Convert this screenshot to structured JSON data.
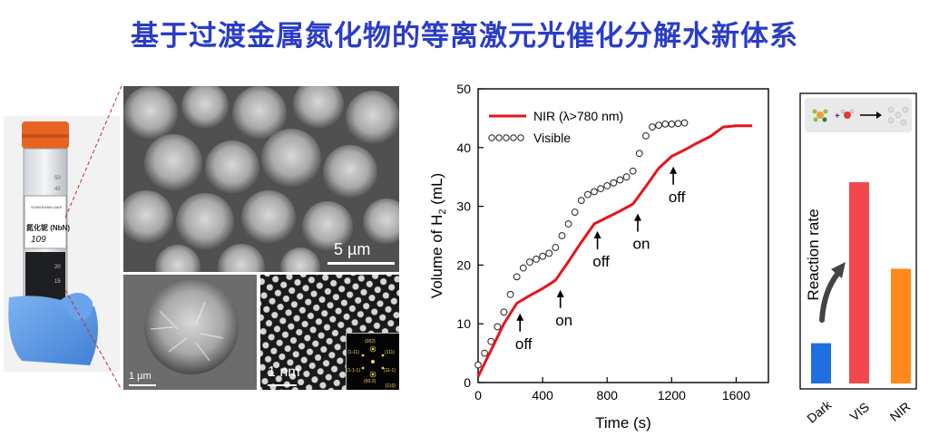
{
  "title": "基于过渡金属氮化物的等离激元光催化分解水新体系",
  "vial": {
    "label_line1": "SONGSHAN LAKE",
    "label_sample": "氮化铌 (NbN)",
    "handwritten": "109",
    "scale_marks": [
      "50",
      "45",
      "20",
      "15"
    ]
  },
  "micrographs": {
    "sem_large_scale": "5 µm",
    "sem_small_scale": "1 µm",
    "tem_scale": "1 nm",
    "fft_labels": [
      "(002)",
      "(1-11)",
      "(111)",
      "(1-1-1)",
      "(11-1)",
      "(00-2)",
      "[110]"
    ]
  },
  "chart_data": [
    {
      "type": "scatter",
      "xlabel": "Time (s)",
      "ylabel": "Volume of H2 (mL)",
      "xlim": [
        0,
        1800
      ],
      "ylim": [
        0,
        50
      ],
      "xticks": [
        "0",
        "400",
        "800",
        "1200",
        "1600"
      ],
      "yticks": [
        "0",
        "10",
        "20",
        "30",
        "40",
        "50"
      ],
      "legend_position": "top-left",
      "series": [
        {
          "name": "NIR (λ>780 nm)",
          "style": "line",
          "color": "#e8141b",
          "x": [
            0,
            80,
            160,
            240,
            320,
            400,
            480,
            560,
            640,
            720,
            800,
            880,
            960,
            1040,
            1120,
            1200,
            1280,
            1360,
            1440,
            1520,
            1600,
            1700
          ],
          "y": [
            1,
            5.5,
            10,
            13.5,
            14.8,
            16,
            17.4,
            20.6,
            23.9,
            27,
            28.1,
            29.2,
            30.4,
            33.4,
            36.5,
            38.5,
            39.6,
            40.8,
            41.9,
            43.5,
            43.7,
            43.7
          ]
        },
        {
          "name": "Visible",
          "style": "open-circle",
          "color": "#222222",
          "x": [
            0,
            40,
            80,
            120,
            160,
            200,
            240,
            280,
            320,
            360,
            400,
            440,
            480,
            520,
            560,
            600,
            640,
            680,
            720,
            760,
            800,
            840,
            880,
            920,
            960,
            1000,
            1040,
            1080,
            1120,
            1160,
            1200,
            1240,
            1280
          ],
          "y": [
            3,
            5,
            7,
            9.5,
            12,
            15,
            18,
            19.5,
            20.5,
            21,
            21.5,
            22,
            23,
            25,
            27,
            29,
            31,
            32,
            32.5,
            33,
            33.5,
            34,
            34.5,
            35,
            36,
            39,
            42,
            43.5,
            43.8,
            44,
            44,
            44.1,
            44.2
          ]
        }
      ],
      "annotations": [
        {
          "text": "off",
          "x": 260,
          "y": 13
        },
        {
          "text": "on",
          "x": 510,
          "y": 17
        },
        {
          "text": "off",
          "x": 740,
          "y": 27
        },
        {
          "text": "on",
          "x": 990,
          "y": 30
        },
        {
          "text": "off",
          "x": 1210,
          "y": 38
        }
      ]
    },
    {
      "type": "bar",
      "ylabel": "Reaction rate",
      "categories": [
        "Dark",
        "VIS",
        "NIR"
      ],
      "values": [
        0.2,
        1.0,
        0.57
      ],
      "colors": [
        "#1f6fe0",
        "#f2484d",
        "#ff8a1a"
      ],
      "inset": "reaction scheme: molecule + water → products"
    }
  ]
}
